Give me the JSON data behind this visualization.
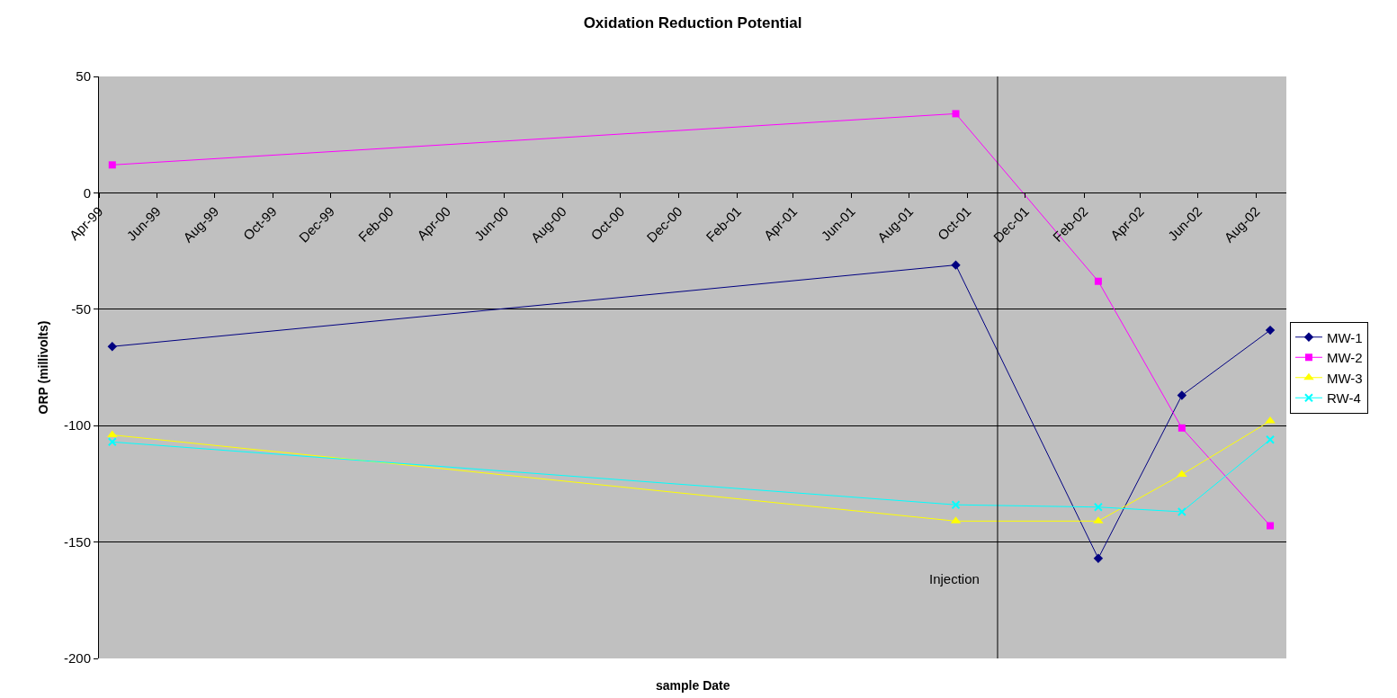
{
  "chart_data": {
    "type": "line",
    "title": "Oxidation Reduction Potential",
    "xlabel": "sample Date",
    "ylabel": "ORP (millivolts)",
    "x": [
      "1999-04-15",
      "2001-09-19",
      "2002-02-16",
      "2002-05-15",
      "2002-08-16"
    ],
    "series": [
      {
        "name": "MW-1",
        "color": "#000080",
        "marker": "diamond",
        "values": [
          -66,
          -31,
          -157,
          -87,
          -59
        ]
      },
      {
        "name": "MW-2",
        "color": "#ff00ff",
        "marker": "square",
        "values": [
          12,
          34,
          -38,
          -101,
          -143
        ]
      },
      {
        "name": "MW-3",
        "color": "#ffff00",
        "marker": "triangle",
        "values": [
          -104,
          -141,
          -141,
          -121,
          -98
        ]
      },
      {
        "name": "RW-4",
        "color": "#00ffff",
        "marker": "cross",
        "values": [
          -107,
          -134,
          -135,
          -137,
          -106
        ]
      }
    ],
    "xlim": [
      "1999-04-01",
      "2002-09-02"
    ],
    "xticks": [
      {
        "value": "1999-04-01",
        "label": "Apr-99"
      },
      {
        "value": "1999-06-01",
        "label": "Jun-99"
      },
      {
        "value": "1999-08-01",
        "label": "Aug-99"
      },
      {
        "value": "1999-10-01",
        "label": "Oct-99"
      },
      {
        "value": "1999-12-01",
        "label": "Dec-99"
      },
      {
        "value": "2000-02-01",
        "label": "Feb-00"
      },
      {
        "value": "2000-04-01",
        "label": "Apr-00"
      },
      {
        "value": "2000-06-01",
        "label": "Jun-00"
      },
      {
        "value": "2000-08-01",
        "label": "Aug-00"
      },
      {
        "value": "2000-10-01",
        "label": "Oct-00"
      },
      {
        "value": "2000-12-01",
        "label": "Dec-00"
      },
      {
        "value": "2001-02-01",
        "label": "Feb-01"
      },
      {
        "value": "2001-04-01",
        "label": "Apr-01"
      },
      {
        "value": "2001-06-01",
        "label": "Jun-01"
      },
      {
        "value": "2001-08-01",
        "label": "Aug-01"
      },
      {
        "value": "2001-10-01",
        "label": "Oct-01"
      },
      {
        "value": "2001-12-01",
        "label": "Dec-01"
      },
      {
        "value": "2002-02-01",
        "label": "Feb-02"
      },
      {
        "value": "2002-04-01",
        "label": "Apr-02"
      },
      {
        "value": "2002-06-01",
        "label": "Jun-02"
      },
      {
        "value": "2002-08-01",
        "label": "Aug-02"
      }
    ],
    "ylim": [
      -200,
      50
    ],
    "yticks": [
      -200,
      -150,
      -100,
      -50,
      0,
      50
    ],
    "grid": "y",
    "legend": "right",
    "ref_lines": [
      {
        "axis": "x",
        "value": "2001-11-02",
        "label": "Injection",
        "color": "#000000"
      }
    ]
  }
}
